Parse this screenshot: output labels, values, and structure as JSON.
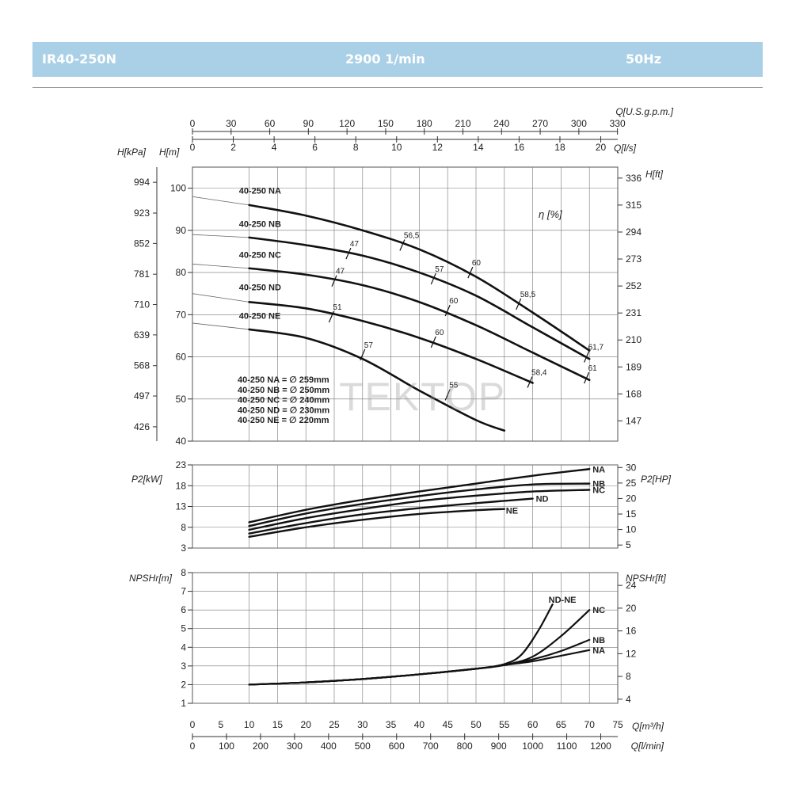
{
  "header": {
    "model": "IR40-250N",
    "speed": "2900 1/min",
    "frequency": "50Hz",
    "background_color": "#a9d0e6"
  },
  "watermark": "TEKTOP",
  "axes": {
    "q_usgpm_label": "Q[U.S.g.p.m.]",
    "q_usgpm_ticks": [
      "0",
      "30",
      "60",
      "90",
      "120",
      "150",
      "180",
      "210",
      "240",
      "270",
      "300",
      "330"
    ],
    "q_ls_label": "Q[l/s]",
    "q_ls_ticks": [
      "0",
      "2",
      "4",
      "6",
      "8",
      "10",
      "12",
      "14",
      "16",
      "18",
      "20"
    ],
    "q_m3h_label": "Q[m³/h]",
    "q_m3h_ticks": [
      "0",
      "5",
      "10",
      "15",
      "20",
      "25",
      "30",
      "35",
      "40",
      "45",
      "50",
      "55",
      "60",
      "65",
      "70",
      "75"
    ],
    "q_lmin_label": "Q[l/min]",
    "q_lmin_ticks": [
      "0",
      "100",
      "200",
      "300",
      "400",
      "500",
      "600",
      "700",
      "800",
      "900",
      "1000",
      "1100",
      "1200"
    ]
  },
  "chart_data": [
    {
      "type": "line",
      "name": "head",
      "xlabel": "Q[m³/h]",
      "ylabel": "H[m]",
      "ylabel2": "H[kPa]",
      "ylabel_right": "H[ft]",
      "xlim": [
        0,
        75
      ],
      "ylim": [
        40,
        105
      ],
      "y_ticks": [
        40,
        50,
        60,
        70,
        80,
        90,
        100
      ],
      "kpa_ticks": [
        {
          "label": "994",
          "h": 101.4
        },
        {
          "label": "923",
          "h": 94.1
        },
        {
          "label": "852",
          "h": 86.9
        },
        {
          "label": "781",
          "h": 79.6
        },
        {
          "label": "710",
          "h": 72.4
        },
        {
          "label": "639",
          "h": 65.2
        },
        {
          "label": "568",
          "h": 57.9
        },
        {
          "label": "497",
          "h": 50.7
        },
        {
          "label": "426",
          "h": 43.4
        }
      ],
      "ft_ticks": [
        {
          "label": "336",
          "h": 102.4
        },
        {
          "label": "315",
          "h": 96.0
        },
        {
          "label": "294",
          "h": 89.6
        },
        {
          "label": "273",
          "h": 83.2
        },
        {
          "label": "252",
          "h": 76.8
        },
        {
          "label": "231",
          "h": 70.4
        },
        {
          "label": "210",
          "h": 64.0
        },
        {
          "label": "189",
          "h": 57.6
        },
        {
          "label": "168",
          "h": 51.2
        },
        {
          "label": "147",
          "h": 44.8
        }
      ],
      "efficiency_label": "η [%]",
      "legend_lines": [
        "40-250 NA = ∅ 259mm",
        "40-250 NB = ∅ 250mm",
        "40-250 NC = ∅ 240mm",
        "40-250 ND = ∅ 230mm",
        "40-250 NE = ∅ 220mm"
      ],
      "series": [
        {
          "name": "40-250 NA",
          "x": [
            0,
            10,
            20,
            30,
            40,
            50,
            60,
            70
          ],
          "y": [
            98,
            96,
            93.5,
            90,
            85.5,
            79,
            70.5,
            61.5
          ],
          "thin_until": 10,
          "label_x": 8.2,
          "label_y": 98.7
        },
        {
          "name": "40-250 NB",
          "x": [
            0,
            10,
            20,
            30,
            40,
            50,
            60,
            70
          ],
          "y": [
            89,
            88.3,
            86.5,
            84,
            80,
            74.5,
            67,
            59.5
          ],
          "thin_until": 10,
          "label_x": 8.2,
          "label_y": 90.8
        },
        {
          "name": "40-250 NC",
          "x": [
            0,
            10,
            20,
            30,
            40,
            50,
            60,
            70
          ],
          "y": [
            82,
            81,
            79.5,
            77,
            73,
            67.5,
            61,
            54.5
          ],
          "thin_until": 10,
          "label_x": 8.2,
          "label_y": 83.5
        },
        {
          "name": "40-250 ND",
          "x": [
            0,
            10,
            20,
            30,
            40,
            50,
            60
          ],
          "y": [
            75,
            73,
            71.5,
            68.5,
            64.5,
            59.5,
            53.8
          ],
          "thin_until": 10,
          "label_x": 8.2,
          "label_y": 75.8
        },
        {
          "name": "40-250 NE",
          "x": [
            0,
            10,
            20,
            30,
            40,
            50,
            55
          ],
          "y": [
            68,
            66.5,
            64.5,
            59.5,
            52,
            45,
            42.5
          ],
          "thin_until": 10,
          "label_x": 8.2,
          "label_y": 69.0
        }
      ],
      "efficiency_marks": [
        {
          "label": "56,5",
          "x": 37,
          "y": 86.5
        },
        {
          "label": "60",
          "x": 49,
          "y": 80.0
        },
        {
          "label": "58,5",
          "x": 57.5,
          "y": 72.5
        },
        {
          "label": "47",
          "x": 27.5,
          "y": 84.5
        },
        {
          "label": "57",
          "x": 42.5,
          "y": 78.5
        },
        {
          "label": "61,7",
          "x": 69.5,
          "y": 60.0
        },
        {
          "label": "47",
          "x": 25,
          "y": 78.0
        },
        {
          "label": "60",
          "x": 45,
          "y": 71.0
        },
        {
          "label": "61",
          "x": 69.5,
          "y": 55.0
        },
        {
          "label": "51",
          "x": 24.5,
          "y": 69.5
        },
        {
          "label": "60",
          "x": 42.5,
          "y": 63.5
        },
        {
          "label": "58,4",
          "x": 59.5,
          "y": 54.0
        },
        {
          "label": "57",
          "x": 30,
          "y": 60.5
        },
        {
          "label": "55",
          "x": 45,
          "y": 51.0
        }
      ]
    },
    {
      "type": "line",
      "name": "power",
      "xlabel": "Q[m³/h]",
      "ylabel": "P2[kW]",
      "ylabel_right": "P2[HP]",
      "xlim": [
        0,
        75
      ],
      "ylim": [
        3,
        23
      ],
      "y_ticks": [
        3,
        8,
        13,
        18,
        23
      ],
      "hp_ticks": [
        5,
        10,
        15,
        20,
        25,
        30
      ],
      "series": [
        {
          "name": "NA",
          "x": [
            10,
            20,
            30,
            40,
            50,
            60,
            70
          ],
          "y": [
            9.2,
            12.2,
            14.6,
            16.6,
            18.5,
            20.4,
            22.0
          ]
        },
        {
          "name": "NB",
          "x": [
            10,
            20,
            30,
            40,
            50,
            60,
            70
          ],
          "y": [
            8.3,
            11.3,
            13.6,
            15.5,
            17.1,
            18.3,
            18.5
          ]
        },
        {
          "name": "NC",
          "x": [
            10,
            20,
            30,
            40,
            50,
            60,
            70
          ],
          "y": [
            7.4,
            10.2,
            12.4,
            14.3,
            15.6,
            16.6,
            17.0
          ]
        },
        {
          "name": "ND",
          "x": [
            10,
            20,
            30,
            40,
            50,
            60
          ],
          "y": [
            6.5,
            9.0,
            11.1,
            12.6,
            13.8,
            14.9
          ]
        },
        {
          "name": "NE",
          "x": [
            10,
            20,
            30,
            40,
            50,
            55
          ],
          "y": [
            5.7,
            8.0,
            9.8,
            11.2,
            12.1,
            12.4
          ]
        }
      ]
    },
    {
      "type": "line",
      "name": "npsh",
      "xlabel": "Q[m³/h]",
      "ylabel": "NPSHr[m]",
      "ylabel_right": "NPSHr[ft]",
      "xlim": [
        0,
        75
      ],
      "ylim": [
        1,
        8
      ],
      "y_ticks": [
        1,
        2,
        3,
        4,
        5,
        6,
        7,
        8
      ],
      "ft_ticks": [
        4,
        8,
        12,
        16,
        20,
        24
      ],
      "series": [
        {
          "name": "NA",
          "x": [
            10,
            20,
            30,
            40,
            50,
            55,
            60,
            65,
            70
          ],
          "y": [
            2.0,
            2.12,
            2.3,
            2.55,
            2.85,
            3.05,
            3.25,
            3.55,
            3.85
          ]
        },
        {
          "name": "NB",
          "x": [
            10,
            20,
            30,
            40,
            50,
            55,
            60,
            65,
            70
          ],
          "y": [
            2.0,
            2.12,
            2.3,
            2.55,
            2.85,
            3.05,
            3.35,
            3.8,
            4.4
          ]
        },
        {
          "name": "NC",
          "x": [
            10,
            20,
            30,
            40,
            50,
            55,
            60,
            65,
            70
          ],
          "y": [
            2.0,
            2.12,
            2.3,
            2.55,
            2.85,
            3.05,
            3.5,
            4.6,
            6.0
          ]
        },
        {
          "name": "ND-NE",
          "x": [
            10,
            20,
            30,
            40,
            50,
            55,
            58,
            61,
            63.5
          ],
          "y": [
            2.0,
            2.12,
            2.3,
            2.55,
            2.85,
            3.1,
            3.6,
            4.9,
            6.3
          ]
        }
      ]
    }
  ]
}
